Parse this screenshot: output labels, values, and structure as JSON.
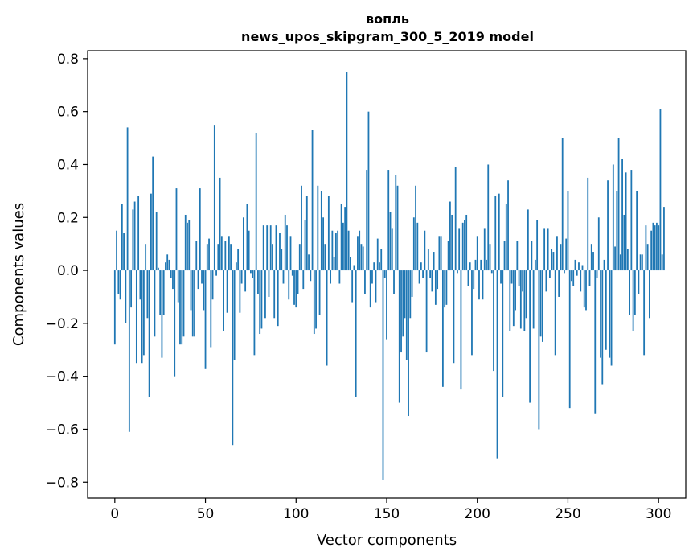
{
  "chart_data": {
    "type": "bar",
    "title": "вопль",
    "subtitle": "news_upos_skipgram_300_5_2019 model",
    "xlabel": "Vector components",
    "ylabel": "Components values",
    "xlim": [
      -15,
      315
    ],
    "ylim": [
      -0.86,
      0.83
    ],
    "xticks": [
      0,
      50,
      100,
      150,
      200,
      250,
      300
    ],
    "xtick_labels": [
      "0",
      "50",
      "100",
      "150",
      "200",
      "250",
      "300"
    ],
    "yticks": [
      -0.8,
      -0.6,
      -0.4,
      -0.2,
      0.0,
      0.2,
      0.4,
      0.6,
      0.8
    ],
    "ytick_labels": [
      "−0.8",
      "−0.6",
      "−0.4",
      "−0.2",
      "0.0",
      "0.2",
      "0.4",
      "0.6",
      "0.8"
    ],
    "bar_color": "#1f77b4",
    "grid": false,
    "values": [
      -0.28,
      0.15,
      -0.09,
      -0.11,
      0.25,
      0.14,
      -0.2,
      0.54,
      -0.61,
      -0.14,
      0.23,
      0.26,
      -0.35,
      0.28,
      -0.11,
      -0.35,
      -0.32,
      0.1,
      -0.18,
      -0.48,
      0.29,
      0.43,
      -0.25,
      0.22,
      0.01,
      -0.17,
      -0.33,
      -0.17,
      0.03,
      0.06,
      0.04,
      -0.03,
      -0.07,
      -0.4,
      0.31,
      -0.12,
      -0.28,
      -0.28,
      -0.25,
      0.21,
      0.18,
      0.19,
      -0.15,
      -0.25,
      -0.25,
      0.11,
      -0.07,
      0.31,
      -0.05,
      -0.15,
      -0.37,
      0.1,
      0.12,
      -0.29,
      -0.11,
      0.55,
      -0.02,
      0.1,
      0.35,
      0.13,
      -0.23,
      0.11,
      -0.16,
      0.13,
      0.1,
      -0.66,
      -0.34,
      0.03,
      0.08,
      -0.16,
      -0.05,
      0.2,
      -0.08,
      0.25,
      0.15,
      -0.01,
      -0.03,
      -0.32,
      0.52,
      -0.09,
      -0.24,
      -0.22,
      0.17,
      -0.18,
      0.17,
      -0.1,
      0.17,
      0.1,
      -0.18,
      0.17,
      -0.21,
      0.14,
      0.08,
      -0.05,
      0.21,
      0.17,
      -0.11,
      0.13,
      -0.02,
      -0.13,
      -0.14,
      -0.09,
      0.1,
      0.32,
      -0.07,
      0.19,
      0.28,
      0.06,
      -0.04,
      0.53,
      -0.24,
      -0.22,
      0.32,
      -0.17,
      0.3,
      0.2,
      0.1,
      -0.36,
      0.28,
      -0.05,
      0.15,
      0.05,
      0.14,
      0.15,
      -0.05,
      0.25,
      0.18,
      0.24,
      0.75,
      0.15,
      0.05,
      -0.12,
      0.02,
      -0.48,
      0.13,
      0.15,
      0.1,
      0.09,
      -0.09,
      0.38,
      0.6,
      -0.14,
      -0.05,
      0.03,
      -0.12,
      0.12,
      0.03,
      0.08,
      -0.79,
      -0.03,
      -0.26,
      0.38,
      0.22,
      0.16,
      -0.09,
      0.36,
      0.32,
      -0.5,
      -0.31,
      -0.25,
      -0.18,
      -0.34,
      -0.55,
      -0.18,
      -0.1,
      0.2,
      0.32,
      0.18,
      -0.05,
      0.03,
      -0.03,
      0.15,
      -0.31,
      0.08,
      -0.03,
      -0.08,
      0.07,
      -0.13,
      -0.07,
      0.13,
      0.13,
      -0.44,
      -0.14,
      -0.13,
      0.11,
      0.26,
      0.21,
      -0.35,
      0.39,
      -0.01,
      0.16,
      -0.45,
      0.18,
      0.19,
      0.21,
      -0.06,
      0.03,
      -0.32,
      -0.07,
      0.04,
      0.13,
      -0.11,
      0.04,
      -0.11,
      0.16,
      0.04,
      0.4,
      0.1,
      -0.01,
      -0.38,
      0.28,
      -0.71,
      0.29,
      -0.05,
      -0.48,
      0.11,
      0.25,
      0.34,
      -0.23,
      -0.05,
      -0.21,
      -0.15,
      0.11,
      -0.06,
      -0.22,
      -0.08,
      -0.23,
      -0.18,
      0.23,
      -0.5,
      0.11,
      -0.22,
      0.04,
      0.19,
      -0.6,
      -0.25,
      -0.27,
      0.16,
      -0.08,
      0.16,
      -0.03,
      0.08,
      0.07,
      -0.32,
      0.13,
      -0.1,
      0.1,
      0.5,
      -0.01,
      0.12,
      0.3,
      -0.52,
      -0.04,
      -0.06,
      0.04,
      -0.02,
      0.03,
      -0.08,
      0.02,
      -0.14,
      -0.15,
      0.35,
      -0.06,
      0.1,
      0.07,
      -0.54,
      -0.03,
      0.2,
      -0.33,
      -0.43,
      0.04,
      -0.3,
      0.34,
      -0.33,
      -0.36,
      0.4,
      0.09,
      0.3,
      0.5,
      0.06,
      0.42,
      0.21,
      0.37,
      0.08,
      -0.17,
      0.38,
      -0.23,
      -0.17,
      0.3,
      -0.09,
      0.06,
      0.06,
      -0.32,
      0.17,
      0.1,
      -0.18,
      0.15,
      0.18,
      0.17,
      0.18,
      0.17,
      0.61,
      0.06,
      0.24
    ]
  }
}
